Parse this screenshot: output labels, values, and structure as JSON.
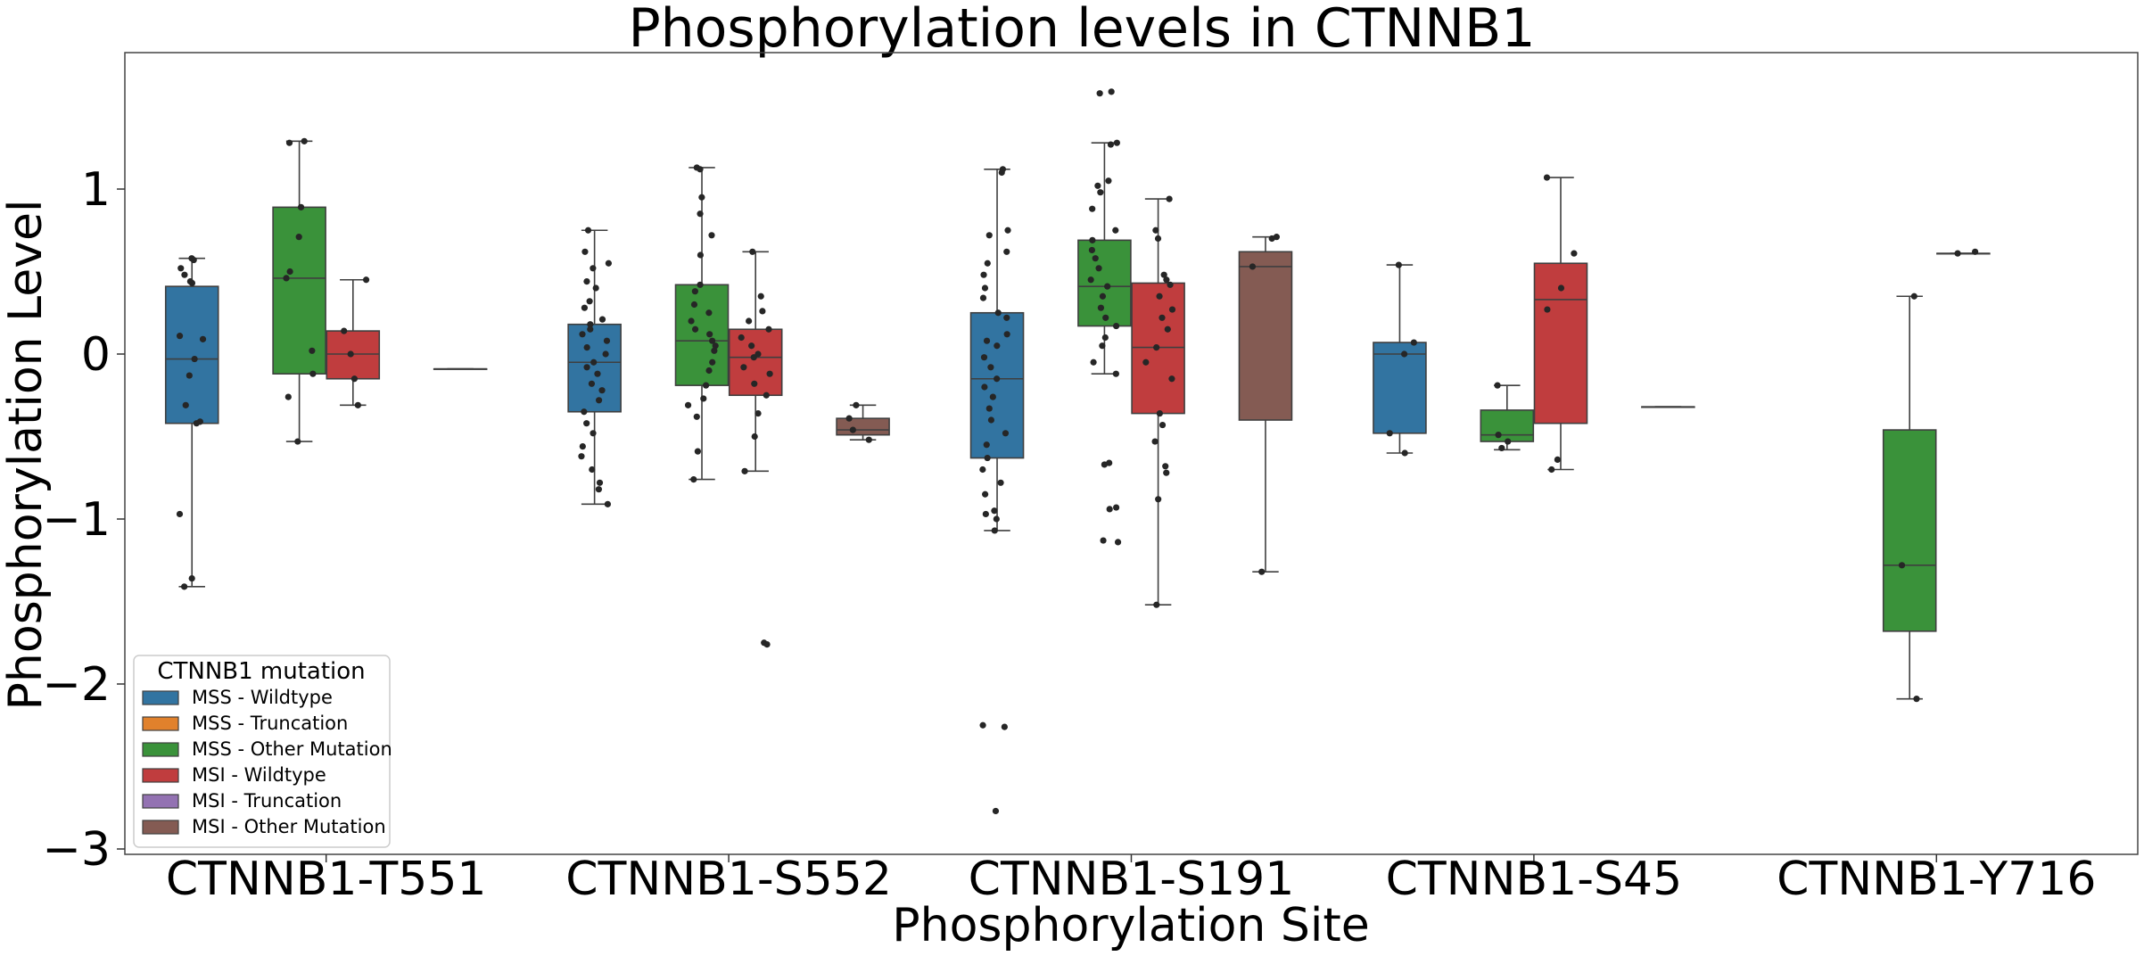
{
  "chart_data": {
    "type": "box",
    "title": "Phosphorylation levels in CTNNB1",
    "xlabel": "Phosphorylation Site",
    "ylabel": "Phosphorylation Level",
    "ylim": [
      -3,
      1.8
    ],
    "yticks": [
      {
        "value": 1,
        "label": "1"
      },
      {
        "value": 0,
        "label": "0"
      },
      {
        "value": -1,
        "label": "−1"
      },
      {
        "value": -2,
        "label": "−2"
      },
      {
        "value": -3,
        "label": "−3"
      }
    ],
    "categories": [
      "CTNNB1-T551",
      "CTNNB1-S552",
      "CTNNB1-S191",
      "CTNNB1-S45",
      "CTNNB1-Y716"
    ],
    "grid": false,
    "legend": {
      "title": "CTNNB1 mutation",
      "position": "lower-left",
      "entries": [
        {
          "name": "MSS - Wildtype",
          "color": "#3274a1"
        },
        {
          "name": "MSS - Truncation",
          "color": "#e1812c"
        },
        {
          "name": "MSS - Other Mutation",
          "color": "#3a923a"
        },
        {
          "name": "MSI - Wildtype",
          "color": "#c03d3e"
        },
        {
          "name": "MSI - Truncation",
          "color": "#9372b2"
        },
        {
          "name": "MSI - Other Mutation",
          "color": "#845b53"
        }
      ]
    },
    "boxes": [
      {
        "category": "CTNNB1-T551",
        "group": "MSS - Wildtype",
        "q1": -0.42,
        "median": -0.03,
        "q3": 0.41,
        "whisker_low": -1.41,
        "whisker_high": 0.58,
        "points": [
          0.58,
          0.57,
          0.52,
          0.48,
          0.44,
          0.43,
          0.11,
          0.09,
          -0.03,
          -0.13,
          -0.31,
          -0.41,
          -0.42,
          -0.97,
          -1.36,
          -1.41
        ]
      },
      {
        "category": "CTNNB1-T551",
        "group": "MSS - Other Mutation",
        "q1": -0.12,
        "median": 0.46,
        "q3": 0.89,
        "whisker_low": -0.53,
        "whisker_high": 1.29,
        "points": [
          1.29,
          1.28,
          0.89,
          0.71,
          0.5,
          0.46,
          0.02,
          -0.12,
          -0.26,
          -0.53
        ]
      },
      {
        "category": "CTNNB1-T551",
        "group": "MSI - Wildtype",
        "q1": -0.15,
        "median": 0.0,
        "q3": 0.14,
        "whisker_low": -0.31,
        "whisker_high": 0.45,
        "points": [
          0.45,
          0.14,
          0.0,
          -0.15,
          -0.31
        ]
      },
      {
        "category": "CTNNB1-T551",
        "group": "MSI - Other Mutation",
        "q1": -0.09,
        "median": -0.09,
        "q3": -0.09,
        "whisker_low": -0.09,
        "whisker_high": -0.09,
        "points": []
      },
      {
        "category": "CTNNB1-S552",
        "group": "MSS - Wildtype",
        "q1": -0.35,
        "median": -0.05,
        "q3": 0.18,
        "whisker_low": -0.91,
        "whisker_high": 0.75,
        "points": [
          0.75,
          0.62,
          0.55,
          0.52,
          0.44,
          0.4,
          0.32,
          0.28,
          0.21,
          0.18,
          0.15,
          0.12,
          0.08,
          0.04,
          0.0,
          -0.05,
          -0.08,
          -0.12,
          -0.18,
          -0.22,
          -0.28,
          -0.35,
          -0.42,
          -0.48,
          -0.56,
          -0.62,
          -0.7,
          -0.78,
          -0.82,
          -0.91
        ]
      },
      {
        "category": "CTNNB1-S552",
        "group": "MSS - Other Mutation",
        "q1": -0.19,
        "median": 0.08,
        "q3": 0.42,
        "whisker_low": -0.76,
        "whisker_high": 1.13,
        "points": [
          1.13,
          1.12,
          0.95,
          0.85,
          0.72,
          0.6,
          0.42,
          0.38,
          0.3,
          0.25,
          0.2,
          0.15,
          0.12,
          0.08,
          0.05,
          0.02,
          -0.05,
          -0.1,
          -0.19,
          -0.27,
          -0.31,
          -0.38,
          -0.59,
          -0.76
        ]
      },
      {
        "category": "CTNNB1-S552",
        "group": "MSI - Wildtype",
        "q1": -0.25,
        "median": -0.02,
        "q3": 0.15,
        "whisker_low": -0.71,
        "whisker_high": 0.62,
        "points": [
          0.62,
          0.35,
          0.26,
          0.2,
          0.15,
          0.1,
          0.05,
          0.0,
          -0.02,
          -0.08,
          -0.12,
          -0.18,
          -0.25,
          -0.36,
          -0.5,
          -0.71,
          -1.75,
          -1.76
        ]
      },
      {
        "category": "CTNNB1-S552",
        "group": "MSI - Other Mutation",
        "q1": -0.49,
        "median": -0.46,
        "q3": -0.39,
        "whisker_low": -0.52,
        "whisker_high": -0.31,
        "points": [
          -0.31,
          -0.39,
          -0.46,
          -0.52
        ]
      },
      {
        "category": "CTNNB1-S191",
        "group": "MSS - Wildtype",
        "q1": -0.63,
        "median": -0.15,
        "q3": 0.25,
        "whisker_low": -1.07,
        "whisker_high": 1.12,
        "points": [
          1.12,
          1.1,
          0.75,
          0.72,
          0.62,
          0.55,
          0.48,
          0.4,
          0.34,
          0.25,
          0.22,
          0.12,
          0.08,
          0.05,
          -0.02,
          -0.08,
          -0.15,
          -0.2,
          -0.26,
          -0.33,
          -0.4,
          -0.48,
          -0.55,
          -0.63,
          -0.7,
          -0.78,
          -0.85,
          -0.95,
          -0.97,
          -1.0,
          -1.07,
          -2.25,
          -2.26,
          -2.77
        ]
      },
      {
        "category": "CTNNB1-S191",
        "group": "MSS - Other Mutation",
        "q1": 0.17,
        "median": 0.41,
        "q3": 0.69,
        "whisker_low": -0.12,
        "whisker_high": 1.28,
        "points": [
          1.59,
          1.58,
          1.28,
          1.27,
          1.05,
          1.02,
          0.98,
          0.88,
          0.75,
          0.69,
          0.63,
          0.58,
          0.52,
          0.45,
          0.41,
          0.35,
          0.28,
          0.22,
          0.17,
          0.1,
          0.05,
          -0.05,
          -0.12,
          -0.66,
          -0.67,
          -0.93,
          -0.94,
          -1.13,
          -1.14
        ]
      },
      {
        "category": "CTNNB1-S191",
        "group": "MSI - Wildtype",
        "q1": -0.36,
        "median": 0.04,
        "q3": 0.43,
        "whisker_low": -1.52,
        "whisker_high": 0.94,
        "points": [
          0.94,
          0.75,
          0.7,
          0.48,
          0.45,
          0.42,
          0.35,
          0.27,
          0.22,
          0.15,
          0.04,
          -0.05,
          -0.15,
          -0.36,
          -0.43,
          -0.53,
          -0.68,
          -0.72,
          -0.88,
          -1.52
        ]
      },
      {
        "category": "CTNNB1-S191",
        "group": "MSI - Other Mutation",
        "q1": -0.4,
        "median": 0.53,
        "q3": 0.62,
        "whisker_low": -1.32,
        "whisker_high": 0.71,
        "points": [
          0.71,
          0.7,
          0.53,
          -1.32
        ]
      },
      {
        "category": "CTNNB1-S45",
        "group": "MSS - Wildtype",
        "q1": -0.48,
        "median": 0.0,
        "q3": 0.07,
        "whisker_low": -0.6,
        "whisker_high": 0.54,
        "points": [
          0.54,
          0.07,
          0.0,
          -0.48,
          -0.6
        ]
      },
      {
        "category": "CTNNB1-S45",
        "group": "MSS - Other Mutation",
        "q1": -0.53,
        "median": -0.49,
        "q3": -0.34,
        "whisker_low": -0.58,
        "whisker_high": -0.19,
        "points": [
          -0.19,
          -0.49,
          -0.53,
          -0.57
        ]
      },
      {
        "category": "CTNNB1-S45",
        "group": "MSI - Wildtype",
        "q1": -0.42,
        "median": 0.33,
        "q3": 0.55,
        "whisker_low": -0.7,
        "whisker_high": 1.07,
        "points": [
          1.07,
          0.61,
          0.4,
          0.27,
          -0.64,
          -0.7
        ]
      },
      {
        "category": "CTNNB1-S45",
        "group": "MSI - Other Mutation",
        "q1": -0.32,
        "median": -0.32,
        "q3": -0.32,
        "whisker_low": -0.32,
        "whisker_high": -0.32,
        "points": []
      },
      {
        "category": "CTNNB1-Y716",
        "group": "MSS - Other Mutation",
        "q1": -1.68,
        "median": -1.28,
        "q3": -0.46,
        "whisker_low": -2.09,
        "whisker_high": 0.35,
        "points": [
          0.35,
          -1.28,
          -2.09
        ]
      },
      {
        "category": "CTNNB1-Y716",
        "group": "MSI - Wildtype",
        "q1": 0.61,
        "median": 0.61,
        "q3": 0.61,
        "whisker_low": 0.61,
        "whisker_high": 0.61,
        "points": [
          0.61,
          0.62
        ]
      }
    ]
  }
}
